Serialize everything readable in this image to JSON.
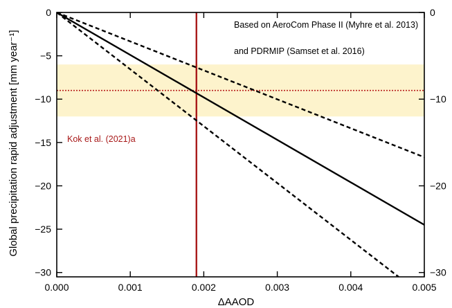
{
  "chart_data": {
    "type": "line",
    "title": "",
    "xlabel": "ΔAAOD",
    "ylabel": "Global precipitation rapid adjustment [mm year⁻¹]",
    "xlim": [
      0,
      0.005
    ],
    "ylim": [
      -30.5,
      0
    ],
    "x_ticks": [
      0.0,
      0.001,
      0.002,
      0.003,
      0.004,
      0.005
    ],
    "x_tick_labels": [
      "0.000",
      "0.001",
      "0.002",
      "0.003",
      "0.004",
      "0.005"
    ],
    "y_ticks": [
      0,
      -5,
      -10,
      -15,
      -20,
      -25,
      -30
    ],
    "y_tick_labels": [
      "0",
      "−5",
      "−10",
      "−15",
      "−20",
      "−25",
      "−30"
    ],
    "right_y_ticks": [
      0,
      -10,
      -20,
      -30
    ],
    "right_y_tick_labels": [
      "0",
      "−10",
      "−20",
      "−30"
    ],
    "grid": false,
    "series": [
      {
        "style": "solid",
        "color": "#000000",
        "x": [
          0,
          0.005
        ],
        "y": [
          0,
          -24.5
        ]
      },
      {
        "style": "dashed",
        "color": "#000000",
        "x": [
          0,
          0.005
        ],
        "y": [
          0,
          -16.7
        ]
      },
      {
        "style": "dashed",
        "color": "#000000",
        "x": [
          0,
          0.00465
        ],
        "y": [
          0,
          -30.5
        ]
      }
    ],
    "shaded_band": {
      "y_range": [
        -12,
        -6
      ],
      "color": "#fdf3cc"
    },
    "reference_hline": {
      "y": -9,
      "color": "#b81c1c",
      "style": "dotted"
    },
    "reference_vline": {
      "x": 0.0019,
      "color": "#a81919",
      "style": "solid"
    },
    "annotations": [
      {
        "text": "Based on AeroCom Phase II (Myhre et al. 2013)",
        "color": "#000000"
      },
      {
        "text": "and PDRMIP (Samset et al. 2016)",
        "color": "#000000"
      },
      {
        "text": "Kok et al. (2021)a",
        "color": "#a81919"
      }
    ]
  }
}
